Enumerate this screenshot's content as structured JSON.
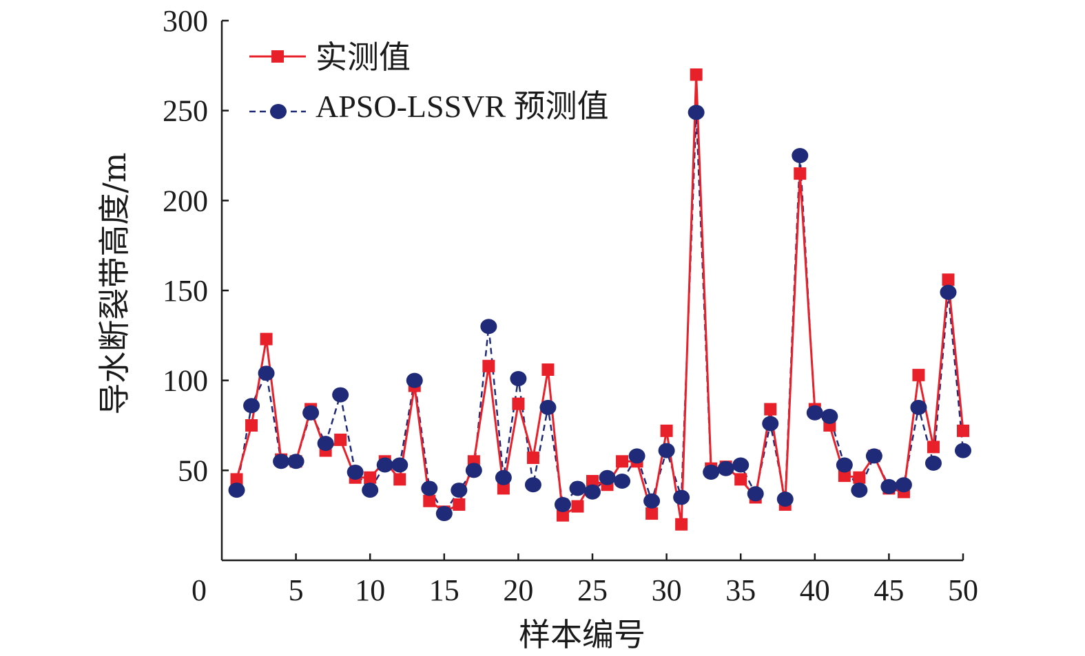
{
  "chart_data": {
    "type": "line",
    "xlabel": "样本编号",
    "ylabel": "导水断裂带高度/m",
    "xlim": [
      0,
      50
    ],
    "ylim": [
      0,
      300
    ],
    "origin_label": "0",
    "x_ticks": [
      5,
      10,
      15,
      20,
      25,
      30,
      35,
      40,
      45,
      50
    ],
    "y_ticks": [
      50,
      100,
      150,
      200,
      250,
      300
    ],
    "grid": false,
    "legend_position": "top-left",
    "colors": {
      "measured": "#e8202a",
      "predicted": "#1f2a78"
    },
    "x": [
      1,
      2,
      3,
      4,
      5,
      6,
      7,
      8,
      9,
      10,
      11,
      12,
      13,
      14,
      15,
      16,
      17,
      18,
      19,
      20,
      21,
      22,
      23,
      24,
      25,
      26,
      27,
      28,
      29,
      30,
      31,
      32,
      33,
      34,
      35,
      36,
      37,
      38,
      39,
      40,
      41,
      42,
      43,
      44,
      45,
      46,
      47,
      48,
      49,
      50
    ],
    "series": [
      {
        "name": "实测值",
        "marker": "square",
        "line": "solid",
        "values": [
          45,
          75,
          123,
          56,
          55,
          84,
          61,
          67,
          46,
          46,
          55,
          45,
          97,
          33,
          27,
          31,
          55,
          108,
          40,
          87,
          57,
          106,
          25,
          30,
          44,
          42,
          55,
          55,
          26,
          72,
          20,
          270,
          51,
          52,
          45,
          35,
          84,
          31,
          215,
          84,
          75,
          47,
          46,
          58,
          40,
          38,
          103,
          63,
          156,
          72
        ]
      },
      {
        "name": "APSO-LSSVR 预测值",
        "marker": "circle",
        "line": "dashed",
        "values": [
          39,
          86,
          104,
          55,
          55,
          82,
          65,
          92,
          49,
          39,
          53,
          53,
          100,
          40,
          26,
          39,
          50,
          130,
          46,
          101,
          42,
          85,
          31,
          40,
          38,
          46,
          44,
          58,
          33,
          61,
          35,
          249,
          49,
          51,
          53,
          37,
          76,
          34,
          225,
          82,
          80,
          53,
          39,
          58,
          41,
          42,
          85,
          54,
          149,
          61
        ]
      }
    ]
  }
}
